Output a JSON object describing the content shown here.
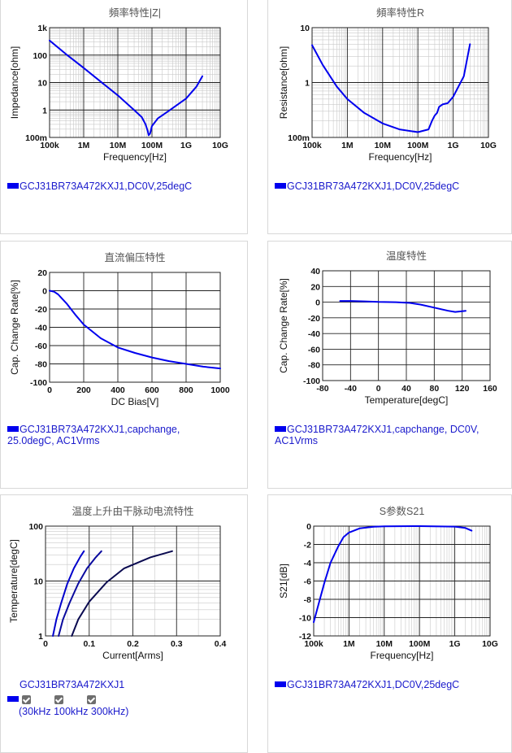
{
  "chart_data": [
    {
      "id": "c1",
      "type": "line",
      "title": "頻率特性|Z|",
      "xlabel": "Frequency[Hz]",
      "ylabel": "Impedance[ohm]",
      "xscale": "log",
      "yscale": "log",
      "xlim": [
        100000,
        10000000000
      ],
      "ylim": [
        0.1,
        1000
      ],
      "xticks": [
        {
          "v": 100000,
          "label": "100k"
        },
        {
          "v": 1000000,
          "label": "1M"
        },
        {
          "v": 10000000,
          "label": "10M"
        },
        {
          "v": 100000000,
          "label": "100M"
        },
        {
          "v": 1000000000,
          "label": "1G"
        },
        {
          "v": 10000000000,
          "label": "10G"
        }
      ],
      "yticks": [
        {
          "v": 0.1,
          "label": "100m"
        },
        {
          "v": 1,
          "label": "1"
        },
        {
          "v": 10,
          "label": "10"
        },
        {
          "v": 100,
          "label": "100"
        },
        {
          "v": 1000,
          "label": "1k"
        }
      ],
      "grid": true,
      "series": [
        {
          "name": "GCJ31BR73A472KXJ1,DC0V,25degC",
          "color": "#0000ee",
          "points": [
            [
              100000,
              340
            ],
            [
              300000,
              110
            ],
            [
              1000000,
              34
            ],
            [
              3000000,
              11.3
            ],
            [
              10000000,
              3.4
            ],
            [
              30000000,
              1.0
            ],
            [
              50000000,
              0.55
            ],
            [
              65000000,
              0.3
            ],
            [
              75000000,
              0.17
            ],
            [
              80000000,
              0.12
            ],
            [
              88000000,
              0.14
            ],
            [
              100000000,
              0.26
            ],
            [
              150000000,
              0.5
            ],
            [
              300000000,
              0.9
            ],
            [
              1000000000,
              2.6
            ],
            [
              2000000000,
              7
            ],
            [
              3000000000,
              17
            ]
          ]
        }
      ]
    },
    {
      "id": "c2",
      "type": "line",
      "title": "頻率特性R",
      "xlabel": "Frequency[Hz]",
      "ylabel": "Resistance[ohm]",
      "xscale": "log",
      "yscale": "log",
      "xlim": [
        100000,
        10000000000
      ],
      "ylim": [
        0.1,
        10
      ],
      "xticks": [
        {
          "v": 100000,
          "label": "100k"
        },
        {
          "v": 1000000,
          "label": "1M"
        },
        {
          "v": 10000000,
          "label": "10M"
        },
        {
          "v": 100000000,
          "label": "100M"
        },
        {
          "v": 1000000000,
          "label": "1G"
        },
        {
          "v": 10000000000,
          "label": "10G"
        }
      ],
      "yticks": [
        {
          "v": 0.1,
          "label": "100m"
        },
        {
          "v": 1,
          "label": "1"
        },
        {
          "v": 10,
          "label": "10"
        }
      ],
      "grid": true,
      "series": [
        {
          "name": "GCJ31BR73A472KXJ1,DC0V,25degC",
          "color": "#0000ee",
          "points": [
            [
              100000,
              4.8
            ],
            [
              200000,
              2.1
            ],
            [
              500000,
              0.85
            ],
            [
              1000000,
              0.5
            ],
            [
              3000000,
              0.28
            ],
            [
              10000000,
              0.18
            ],
            [
              30000000,
              0.14
            ],
            [
              100000000,
              0.125
            ],
            [
              200000000,
              0.14
            ],
            [
              250000000,
              0.2
            ],
            [
              300000000,
              0.25
            ],
            [
              350000000,
              0.28
            ],
            [
              400000000,
              0.36
            ],
            [
              500000000,
              0.4
            ],
            [
              700000000,
              0.42
            ],
            [
              1000000000,
              0.55
            ],
            [
              2000000000,
              1.3
            ],
            [
              3000000000,
              5.0
            ]
          ]
        }
      ]
    },
    {
      "id": "c3",
      "type": "line",
      "title": "直流偏压特性",
      "xlabel": "DC Bias[V]",
      "ylabel": "Cap. Change Rate[%]",
      "xscale": "linear",
      "yscale": "linear",
      "xlim": [
        0,
        1000
      ],
      "ylim": [
        -100,
        20
      ],
      "xticks": [
        {
          "v": 0,
          "label": "0"
        },
        {
          "v": 200,
          "label": "200"
        },
        {
          "v": 400,
          "label": "400"
        },
        {
          "v": 600,
          "label": "600"
        },
        {
          "v": 800,
          "label": "800"
        },
        {
          "v": 1000,
          "label": "1000"
        }
      ],
      "yticks": [
        {
          "v": 20,
          "label": "20"
        },
        {
          "v": 0,
          "label": "0"
        },
        {
          "v": -20,
          "label": "-20"
        },
        {
          "v": -40,
          "label": "-40"
        },
        {
          "v": -60,
          "label": "-60"
        },
        {
          "v": -80,
          "label": "-80"
        },
        {
          "v": -100,
          "label": "-100"
        }
      ],
      "grid": true,
      "series": [
        {
          "name": "GCJ31BR73A472KXJ1,capchange, 25.0degC, AC1Vrms",
          "color": "#0000ee",
          "points": [
            [
              0,
              0
            ],
            [
              25,
              -1
            ],
            [
              50,
              -4
            ],
            [
              100,
              -14
            ],
            [
              150,
              -26
            ],
            [
              200,
              -37
            ],
            [
              300,
              -52
            ],
            [
              400,
              -62
            ],
            [
              500,
              -68
            ],
            [
              600,
              -73
            ],
            [
              700,
              -77
            ],
            [
              800,
              -80
            ],
            [
              900,
              -83
            ],
            [
              1000,
              -85
            ]
          ]
        }
      ]
    },
    {
      "id": "c4",
      "type": "line",
      "title": "温度特性",
      "xlabel": "Temperature[degC]",
      "ylabel": "Cap. Change Rate[%]",
      "xscale": "linear",
      "yscale": "linear",
      "xlim": [
        -80,
        160
      ],
      "ylim": [
        -100,
        40
      ],
      "xticks": [
        {
          "v": -80,
          "label": "-80"
        },
        {
          "v": -40,
          "label": "-40"
        },
        {
          "v": 0,
          "label": "0"
        },
        {
          "v": 40,
          "label": "40"
        },
        {
          "v": 80,
          "label": "80"
        },
        {
          "v": 120,
          "label": "120"
        },
        {
          "v": 160,
          "label": "160"
        }
      ],
      "yticks": [
        {
          "v": 40,
          "label": "40"
        },
        {
          "v": 20,
          "label": "20"
        },
        {
          "v": 0,
          "label": "0"
        },
        {
          "v": -20,
          "label": "-20"
        },
        {
          "v": -40,
          "label": "-40"
        },
        {
          "v": -60,
          "label": "-60"
        },
        {
          "v": -80,
          "label": "-80"
        },
        {
          "v": -100,
          "label": "-100"
        }
      ],
      "grid": true,
      "series": [
        {
          "name": "GCJ31BR73A472KXJ1,capchange, DC0V, AC1Vrms",
          "color": "#0000ee",
          "points": [
            [
              -55,
              1.5
            ],
            [
              -40,
              1.5
            ],
            [
              -20,
              1
            ],
            [
              0,
              0.3
            ],
            [
              25,
              0
            ],
            [
              45,
              -1
            ],
            [
              60,
              -3
            ],
            [
              80,
              -7
            ],
            [
              100,
              -11
            ],
            [
              110,
              -12.5
            ],
            [
              125,
              -11
            ]
          ]
        }
      ]
    },
    {
      "id": "c5",
      "type": "line",
      "title": "温度上升由干脉动电流特性",
      "xlabel": "Current[Arms]",
      "ylabel": "Temperature[degC]",
      "xscale": "linear",
      "yscale": "log",
      "xlim": [
        0,
        0.4
      ],
      "ylim": [
        1,
        100
      ],
      "xticks": [
        {
          "v": 0,
          "label": "0"
        },
        {
          "v": 0.1,
          "label": "0.1"
        },
        {
          "v": 0.2,
          "label": "0.2"
        },
        {
          "v": 0.3,
          "label": "0.3"
        },
        {
          "v": 0.4,
          "label": "0.4"
        }
      ],
      "yticks": [
        {
          "v": 1,
          "label": "1"
        },
        {
          "v": 10,
          "label": "10"
        },
        {
          "v": 100,
          "label": "100"
        }
      ],
      "grid": true,
      "series": [
        {
          "name": "30kHz",
          "color": "#0000cc",
          "points": [
            [
              0.017,
              1
            ],
            [
              0.025,
              2
            ],
            [
              0.036,
              4
            ],
            [
              0.05,
              9
            ],
            [
              0.065,
              17
            ],
            [
              0.08,
              28
            ],
            [
              0.088,
              35
            ]
          ]
        },
        {
          "name": "100kHz",
          "color": "#0a0a9e",
          "points": [
            [
              0.03,
              1
            ],
            [
              0.04,
              2
            ],
            [
              0.055,
              4
            ],
            [
              0.075,
              9
            ],
            [
              0.095,
              17
            ],
            [
              0.115,
              27
            ],
            [
              0.128,
              35
            ]
          ]
        },
        {
          "name": "300kHz",
          "color": "#0a0a50",
          "points": [
            [
              0.06,
              1
            ],
            [
              0.075,
              2
            ],
            [
              0.1,
              4.2
            ],
            [
              0.14,
              9.5
            ],
            [
              0.18,
              17
            ],
            [
              0.24,
              27
            ],
            [
              0.29,
              35
            ]
          ]
        }
      ]
    },
    {
      "id": "c6",
      "type": "line",
      "title": "S参数S21",
      "xlabel": "Frequency[Hz]",
      "ylabel": "S21[dB]",
      "xscale": "log",
      "yscale": "linear",
      "xlim": [
        100000,
        10000000000
      ],
      "ylim": [
        -12,
        0
      ],
      "xticks": [
        {
          "v": 100000,
          "label": "100k"
        },
        {
          "v": 1000000,
          "label": "1M"
        },
        {
          "v": 10000000,
          "label": "10M"
        },
        {
          "v": 100000000,
          "label": "100M"
        },
        {
          "v": 1000000000,
          "label": "1G"
        },
        {
          "v": 10000000000,
          "label": "10G"
        }
      ],
      "yticks": [
        {
          "v": 0,
          "label": "0"
        },
        {
          "v": -2,
          "label": "-2"
        },
        {
          "v": -4,
          "label": "-4"
        },
        {
          "v": -6,
          "label": "-6"
        },
        {
          "v": -8,
          "label": "-8"
        },
        {
          "v": -10,
          "label": "-10"
        },
        {
          "v": -12,
          "label": "-12"
        }
      ],
      "grid": true,
      "series": [
        {
          "name": "GCJ31BR73A472KXJ1,DC0V,25degC",
          "color": "#0000ee",
          "points": [
            [
              100000,
              -10.5
            ],
            [
              150000,
              -8
            ],
            [
              200000,
              -6.2
            ],
            [
              300000,
              -4
            ],
            [
              500000,
              -2.2
            ],
            [
              700000,
              -1.2
            ],
            [
              1000000,
              -0.7
            ],
            [
              2000000,
              -0.25
            ],
            [
              5000000,
              -0.06
            ],
            [
              10000000,
              -0.02
            ],
            [
              100000000,
              0
            ],
            [
              1000000000,
              -0.05
            ],
            [
              2000000000,
              -0.2
            ],
            [
              3000000000,
              -0.5
            ]
          ]
        }
      ]
    }
  ],
  "legends": {
    "c1": "GCJ31BR73A472KXJ1,DC0V,25degC",
    "c2": "GCJ31BR73A472KXJ1,DC0V,25degC",
    "c3_line1": "GCJ31BR73A472KXJ1,capchange,",
    "c3_line2": "25.0degC, AC1Vrms",
    "c4_line1": "GCJ31BR73A472KXJ1,capchange, DC0V,",
    "c4_line2": "AC1Vrms",
    "c5_title": "GCJ31BR73A472KXJ1",
    "c5_options": "(30kHz 100kHz 300kHz)",
    "c6": "GCJ31BR73A472KXJ1,DC0V,25degC"
  }
}
